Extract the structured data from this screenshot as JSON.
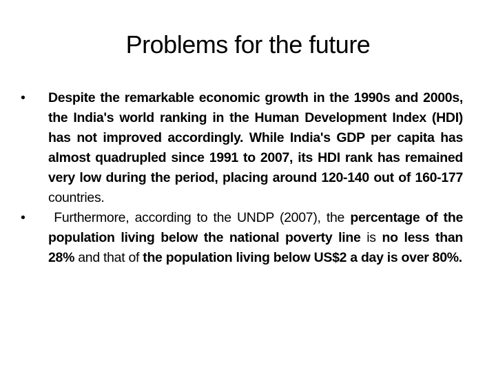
{
  "title": "Problems for the future",
  "bullets": [
    {
      "runs": [
        {
          "text": "Despite the remarkable economic growth in the 1990s and 2000s, the India's world ranking in the Human Development Index (HDI) has not improved accordingly. While India's GDP per capita has almost quadrupled since 1991 to 2007, its HDI rank has remained very low during the period, placing around 120-140 out of 160-177",
          "bold": true
        },
        {
          "text": " countries.",
          "bold": false
        }
      ]
    },
    {
      "runs": [
        {
          "text": " Furthermore, according to the UNDP (2007), the ",
          "bold": false
        },
        {
          "text": "percentage of the population living below the national poverty line",
          "bold": true
        },
        {
          "text": " is ",
          "bold": false
        },
        {
          "text": "no less than 28%",
          "bold": true
        },
        {
          "text": " and that of ",
          "bold": false
        },
        {
          "text": "the population living below US$2 a day is over 80%.",
          "bold": true
        }
      ]
    }
  ]
}
